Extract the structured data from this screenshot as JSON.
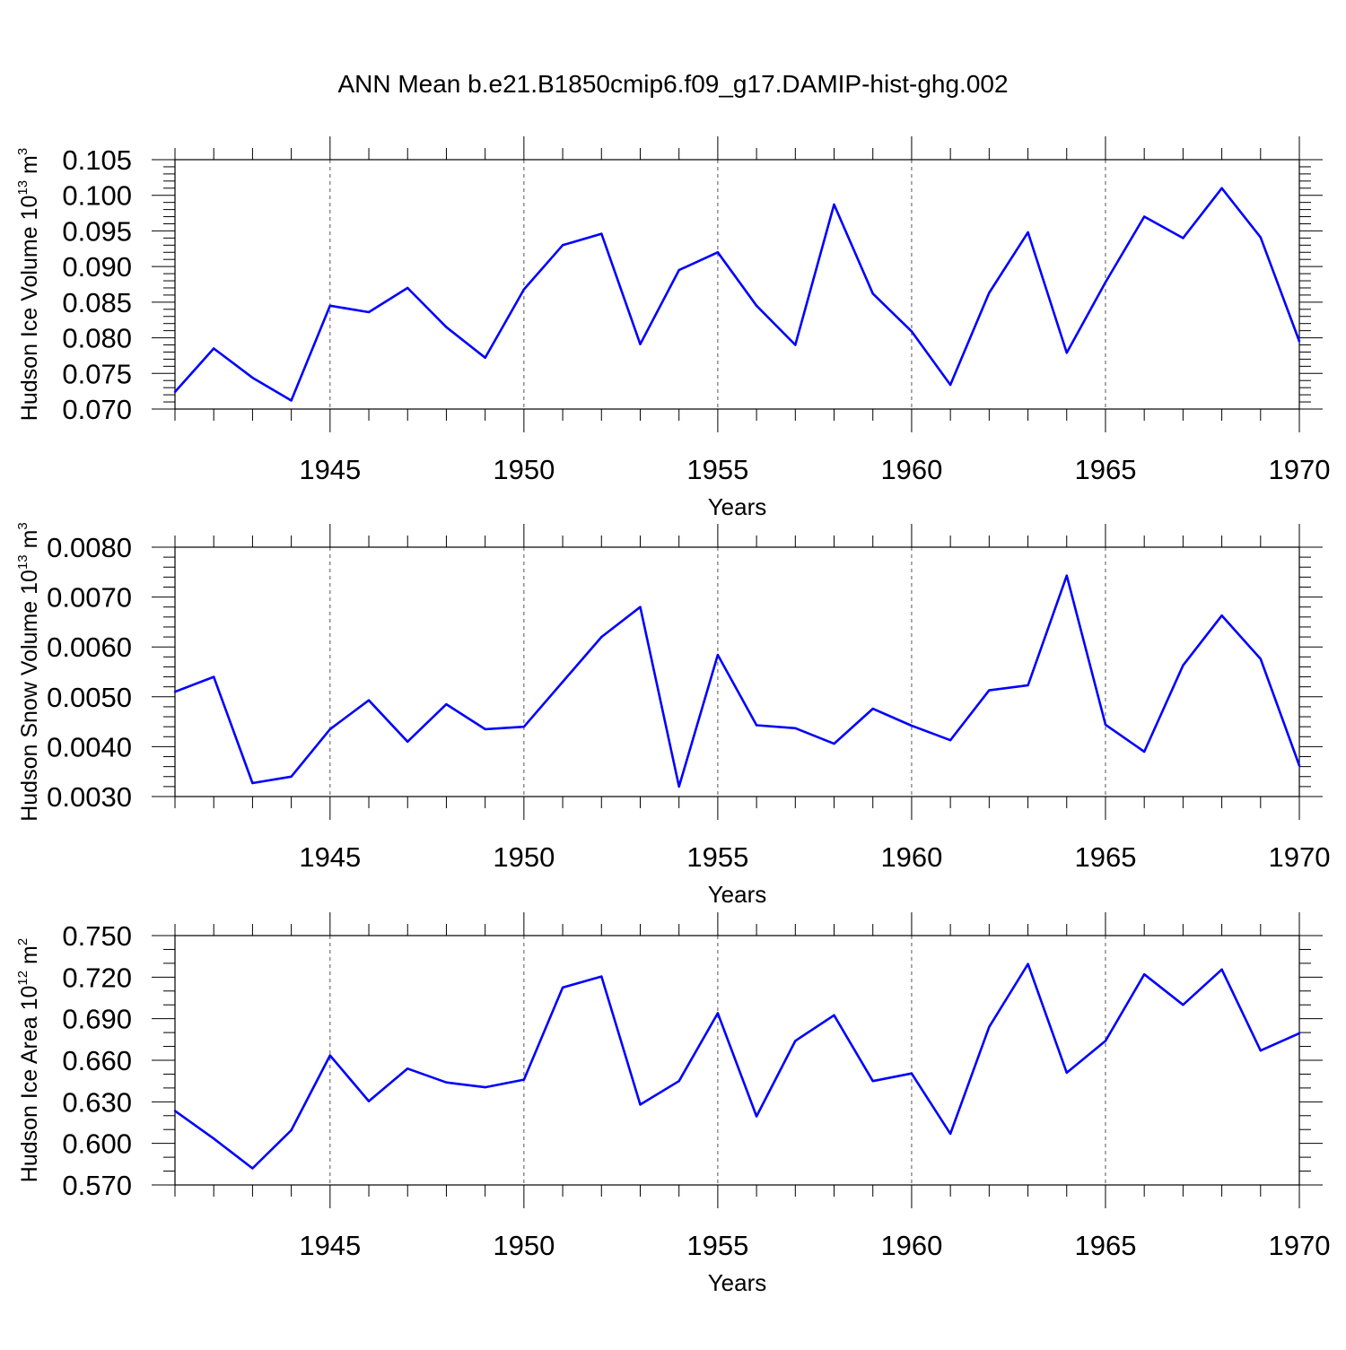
{
  "title": "ANN Mean b.e21.B1850cmip6.f09_g17.DAMIP-hist-ghg.002",
  "colors": {
    "line": "#0000ff",
    "axis": "#000000",
    "grid": "#555555"
  },
  "chart_data": [
    {
      "type": "line",
      "ylabel": "Hudson Ice Volume 10",
      "ylabel_exp": "13",
      "ylabel_unit": "m",
      "ylabel_unit_exp": "3",
      "xlabel": "Years",
      "xlim": [
        1941,
        1970
      ],
      "ylim": [
        0.07,
        0.105
      ],
      "yticks": [
        0.07,
        0.075,
        0.08,
        0.085,
        0.09,
        0.095,
        0.1,
        0.105
      ],
      "yticklabels": [
        "0.070",
        "0.075",
        "0.080",
        "0.085",
        "0.090",
        "0.095",
        "0.100",
        "0.105"
      ],
      "yminor_step": 0.001,
      "xticks": [
        1945,
        1950,
        1955,
        1960,
        1965,
        1970
      ],
      "xticklabels": [
        "1945",
        "1950",
        "1955",
        "1960",
        "1965",
        "1970"
      ],
      "x": [
        1941,
        1942,
        1943,
        1944,
        1945,
        1946,
        1947,
        1948,
        1949,
        1950,
        1951,
        1952,
        1953,
        1954,
        1955,
        1956,
        1957,
        1958,
        1959,
        1960,
        1961,
        1962,
        1963,
        1964,
        1965,
        1966,
        1967,
        1968,
        1969,
        1970
      ],
      "values": [
        0.0724,
        0.0785,
        0.0744,
        0.0712,
        0.0845,
        0.0836,
        0.087,
        0.0815,
        0.0772,
        0.0868,
        0.093,
        0.0946,
        0.0791,
        0.0895,
        0.092,
        0.0845,
        0.079,
        0.0987,
        0.0862,
        0.0809,
        0.0734,
        0.0863,
        0.0948,
        0.0779,
        0.0878,
        0.097,
        0.094,
        0.101,
        0.0941,
        0.0795
      ]
    },
    {
      "type": "line",
      "ylabel": "Hudson Snow Volume 10",
      "ylabel_exp": "13",
      "ylabel_unit": "m",
      "ylabel_unit_exp": "3",
      "xlabel": "Years",
      "xlim": [
        1941,
        1970
      ],
      "ylim": [
        0.003,
        0.008
      ],
      "yticks": [
        0.003,
        0.004,
        0.005,
        0.006,
        0.007,
        0.008
      ],
      "yticklabels": [
        "0.0030",
        "0.0040",
        "0.0050",
        "0.0060",
        "0.0070",
        "0.0080"
      ],
      "yminor_step": 0.0002,
      "xticks": [
        1945,
        1950,
        1955,
        1960,
        1965,
        1970
      ],
      "xticklabels": [
        "1945",
        "1950",
        "1955",
        "1960",
        "1965",
        "1970"
      ],
      "x": [
        1941,
        1942,
        1943,
        1944,
        1945,
        1946,
        1947,
        1948,
        1949,
        1950,
        1951,
        1952,
        1953,
        1954,
        1955,
        1956,
        1957,
        1958,
        1959,
        1960,
        1961,
        1962,
        1963,
        1964,
        1965,
        1966,
        1967,
        1968,
        1969,
        1970
      ],
      "values": [
        0.0051,
        0.0054,
        0.00327,
        0.0034,
        0.00435,
        0.00493,
        0.0041,
        0.00485,
        0.00435,
        0.0044,
        0.0053,
        0.0062,
        0.0068,
        0.0032,
        0.00584,
        0.00443,
        0.00437,
        0.00406,
        0.00476,
        0.00442,
        0.00413,
        0.00513,
        0.00523,
        0.00743,
        0.00444,
        0.0039,
        0.00563,
        0.00663,
        0.00576,
        0.00362
      ]
    },
    {
      "type": "line",
      "ylabel": "Hudson Ice Area 10",
      "ylabel_exp": "12",
      "ylabel_unit": "m",
      "ylabel_unit_exp": "2",
      "xlabel": "Years",
      "xlim": [
        1941,
        1970
      ],
      "ylim": [
        0.57,
        0.75
      ],
      "yticks": [
        0.57,
        0.6,
        0.63,
        0.66,
        0.69,
        0.72,
        0.75
      ],
      "yticklabels": [
        "0.570",
        "0.600",
        "0.630",
        "0.660",
        "0.690",
        "0.720",
        "0.750"
      ],
      "yminor_step": 0.01,
      "xticks": [
        1945,
        1950,
        1955,
        1960,
        1965,
        1970
      ],
      "xticklabels": [
        "1945",
        "1950",
        "1955",
        "1960",
        "1965",
        "1970"
      ],
      "x": [
        1941,
        1942,
        1943,
        1944,
        1945,
        1946,
        1947,
        1948,
        1949,
        1950,
        1951,
        1952,
        1953,
        1954,
        1955,
        1956,
        1957,
        1958,
        1959,
        1960,
        1961,
        1962,
        1963,
        1964,
        1965,
        1966,
        1967,
        1968,
        1969,
        1970
      ],
      "values": [
        0.6235,
        0.6035,
        0.582,
        0.6095,
        0.6635,
        0.6305,
        0.654,
        0.644,
        0.6405,
        0.646,
        0.7125,
        0.7205,
        0.628,
        0.645,
        0.694,
        0.6195,
        0.674,
        0.6925,
        0.645,
        0.6505,
        0.607,
        0.684,
        0.7295,
        0.651,
        0.674,
        0.722,
        0.7,
        0.7255,
        0.667,
        0.6795
      ]
    }
  ]
}
